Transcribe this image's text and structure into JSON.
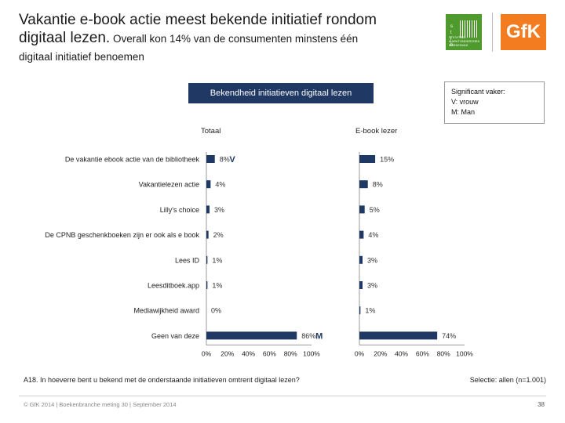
{
  "title": {
    "line1": "Vakantie e-book actie meest bekende initiatief rondom",
    "line2_big": "digitaal lezen.",
    "line2_small": " Overall kon 14% van de consumenten minstens één",
    "line3": "digitaal initiatief benoemen"
  },
  "logos": {
    "left_letters": [
      "s",
      "t",
      "i",
      "b"
    ],
    "left_tag": "STICHTING MARKTONDERZOEK BOEKENVAK",
    "gfk": "GfK",
    "green": "#4f9a2c",
    "orange": "#f47c20"
  },
  "header_box": "Bekendheid initiatieven digitaal lezen",
  "significance": {
    "title": "Significant vaker:",
    "line1": "V: vrouw",
    "line2": "M: Man"
  },
  "chart_data": [
    {
      "type": "bar",
      "orientation": "horizontal",
      "title": "Totaal",
      "categories": [
        "De vakantie ebook actie van de bibliotheek",
        "Vakantielezen actie",
        "Lilly's choice",
        "De CPNB geschenkboeken zijn er ook als e book",
        "Lees ID",
        "Leesditboek.app",
        "Mediawijkheid award",
        "Geen van deze"
      ],
      "values": [
        8,
        4,
        3,
        2,
        1,
        1,
        0,
        86
      ],
      "value_labels": [
        "8%",
        "4%",
        "3%",
        "2%",
        "1%",
        "1%",
        "0%",
        "86%"
      ],
      "markers": [
        "V",
        "",
        "",
        "",
        "",
        "",
        "",
        "M"
      ],
      "xlim": [
        0,
        100
      ],
      "ticks": [
        "0%",
        "20%",
        "40%",
        "60%",
        "80%",
        "100%"
      ],
      "grid": false,
      "color": "#1f3864"
    },
    {
      "type": "bar",
      "orientation": "horizontal",
      "title": "E-book lezer",
      "categories": [
        "De vakantie ebook actie van de bibliotheek",
        "Vakantielezen actie",
        "Lilly's choice",
        "De CPNB geschenkboeken zijn er ook als e book",
        "Lees ID",
        "Leesditboek.app",
        "Mediawijkheid award",
        "Geen van deze"
      ],
      "values": [
        15,
        8,
        5,
        4,
        3,
        3,
        1,
        74
      ],
      "value_labels": [
        "15%",
        "8%",
        "5%",
        "4%",
        "3%",
        "3%",
        "1%",
        "74%"
      ],
      "xlim": [
        0,
        100
      ],
      "ticks": [
        "0%",
        "20%",
        "40%",
        "60%",
        "80%",
        "100%"
      ],
      "grid": false,
      "color": "#1f3864"
    }
  ],
  "footer": {
    "question": "A18. In hoeverre bent u bekend met de onderstaande initiatieven omtrent digitaal lezen?",
    "selection": "Selectie: allen (n=1.001)",
    "copyright": "© GfK 2014 | Boekenbranche meting 30 | September 2014",
    "page": "38"
  }
}
